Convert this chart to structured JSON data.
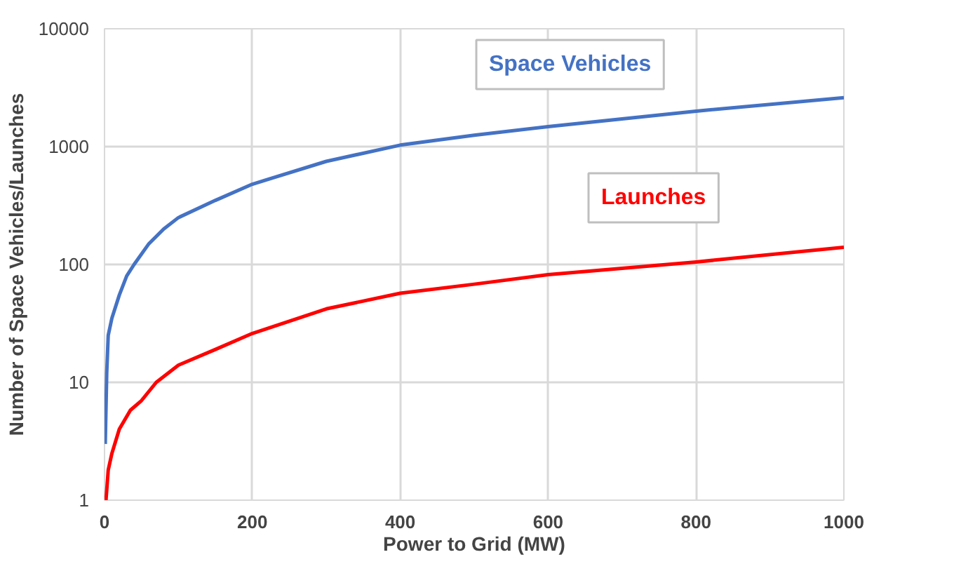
{
  "chart_data": {
    "type": "line",
    "xlabel": "Power to Grid (MW)",
    "ylabel": "Number of Space Vehicles/Launches",
    "log": "y",
    "grid": true,
    "legend": false,
    "marker": "none",
    "line_style": "solid",
    "xlim": [
      0,
      1000
    ],
    "xticks": [
      0,
      200,
      400,
      600,
      800,
      1000
    ],
    "ylim": [
      1,
      10000
    ],
    "yticks": [
      1,
      10,
      100,
      1000,
      10000
    ],
    "series": [
      {
        "name": "Space Vehicles",
        "color": "#4472c4",
        "x": [
          1,
          3,
          5,
          10,
          20,
          30,
          40,
          60,
          80,
          100,
          150,
          200,
          300,
          400,
          500,
          600,
          800,
          1000
        ],
        "values": [
          3,
          12,
          25,
          35,
          55,
          80,
          100,
          150,
          200,
          250,
          350,
          480,
          750,
          1030,
          1250,
          1480,
          2000,
          2600
        ]
      },
      {
        "name": "Launches",
        "color": "#ff0000",
        "x": [
          2,
          5,
          10,
          20,
          35,
          50,
          70,
          100,
          150,
          200,
          300,
          400,
          500,
          600,
          800,
          1000
        ],
        "values": [
          1,
          1.8,
          2.5,
          4,
          5.8,
          7,
          10,
          14,
          19,
          26,
          42,
          57,
          68,
          82,
          105,
          140
        ]
      }
    ]
  }
}
